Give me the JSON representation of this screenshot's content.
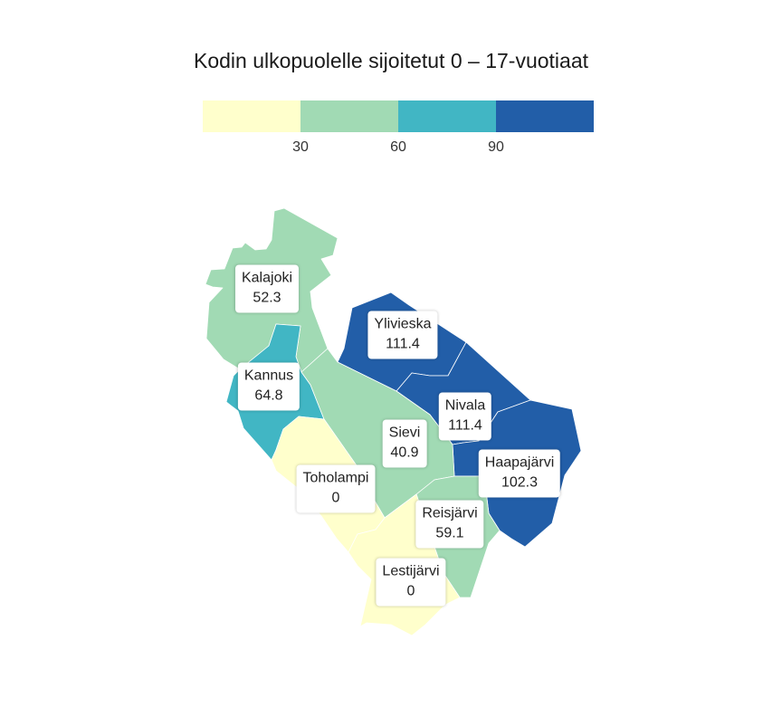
{
  "title": "Kodin ulkopuolelle sijoitetut 0 – 17-vuotiaat",
  "legend": {
    "colors": [
      "#ffffcc",
      "#a1dab4",
      "#41b6c4",
      "#225ea8"
    ],
    "breaks": [
      "30",
      "60",
      "90"
    ]
  },
  "regions": [
    {
      "name": "Kalajoki",
      "value": "52.3",
      "color": "#a1dab4"
    },
    {
      "name": "Kannus",
      "value": "64.8",
      "color": "#41b6c4"
    },
    {
      "name": "Ylivieska",
      "value": "111.4",
      "color": "#225ea8"
    },
    {
      "name": "Nivala",
      "value": "111.4",
      "color": "#225ea8"
    },
    {
      "name": "Sievi",
      "value": "40.9",
      "color": "#a1dab4"
    },
    {
      "name": "Haapajärvi",
      "value": "102.3",
      "color": "#225ea8"
    },
    {
      "name": "Toholampi",
      "value": "0",
      "color": "#ffffcc"
    },
    {
      "name": "Reisjärvi",
      "value": "59.1",
      "color": "#a1dab4"
    },
    {
      "name": "Lestijärvi",
      "value": "0",
      "color": "#ffffcc"
    }
  ]
}
